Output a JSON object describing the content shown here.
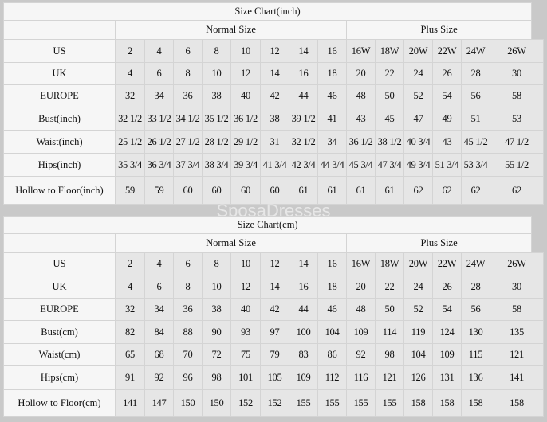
{
  "watermark": "SposaDresses",
  "tables": [
    {
      "title": "Size Chart(inch)",
      "normal_label": "Normal Size",
      "plus_label": "Plus Size",
      "rows": [
        {
          "label": "US",
          "values": [
            "2",
            "4",
            "6",
            "8",
            "10",
            "12",
            "14",
            "16",
            "16W",
            "18W",
            "20W",
            "22W",
            "24W",
            "26W"
          ]
        },
        {
          "label": "UK",
          "values": [
            "4",
            "6",
            "8",
            "10",
            "12",
            "14",
            "16",
            "18",
            "20",
            "22",
            "24",
            "26",
            "28",
            "30"
          ]
        },
        {
          "label": "EUROPE",
          "values": [
            "32",
            "34",
            "36",
            "38",
            "40",
            "42",
            "44",
            "46",
            "48",
            "50",
            "52",
            "54",
            "56",
            "58"
          ]
        },
        {
          "label": "Bust(inch)",
          "values": [
            "32 1/2",
            "33 1/2",
            "34 1/2",
            "35 1/2",
            "36 1/2",
            "38",
            "39 1/2",
            "41",
            "43",
            "45",
            "47",
            "49",
            "51",
            "53"
          ]
        },
        {
          "label": "Waist(inch)",
          "values": [
            "25 1/2",
            "26 1/2",
            "27 1/2",
            "28 1/2",
            "29 1/2",
            "31",
            "32 1/2",
            "34",
            "36 1/2",
            "38 1/2",
            "40 3/4",
            "43",
            "45 1/2",
            "47 1/2"
          ]
        },
        {
          "label": "Hips(inch)",
          "values": [
            "35 3/4",
            "36 3/4",
            "37 3/4",
            "38 3/4",
            "39 3/4",
            "41 3/4",
            "42 3/4",
            "44 3/4",
            "45 3/4",
            "47 3/4",
            "49 3/4",
            "51 3/4",
            "53 3/4",
            "55 1/2"
          ]
        },
        {
          "label": "Hollow to Floor(inch)",
          "values": [
            "59",
            "59",
            "60",
            "60",
            "60",
            "60",
            "61",
            "61",
            "61",
            "61",
            "62",
            "62",
            "62",
            "62"
          ]
        }
      ]
    },
    {
      "title": "Size Chart(cm)",
      "normal_label": "Normal Size",
      "plus_label": "Plus Size",
      "rows": [
        {
          "label": "US",
          "values": [
            "2",
            "4",
            "6",
            "8",
            "10",
            "12",
            "14",
            "16",
            "16W",
            "18W",
            "20W",
            "22W",
            "24W",
            "26W"
          ]
        },
        {
          "label": "UK",
          "values": [
            "4",
            "6",
            "8",
            "10",
            "12",
            "14",
            "16",
            "18",
            "20",
            "22",
            "24",
            "26",
            "28",
            "30"
          ]
        },
        {
          "label": "EUROPE",
          "values": [
            "32",
            "34",
            "36",
            "38",
            "40",
            "42",
            "44",
            "46",
            "48",
            "50",
            "52",
            "54",
            "56",
            "58"
          ]
        },
        {
          "label": "Bust(cm)",
          "values": [
            "82",
            "84",
            "88",
            "90",
            "93",
            "97",
            "100",
            "104",
            "109",
            "114",
            "119",
            "124",
            "130",
            "135"
          ]
        },
        {
          "label": "Waist(cm)",
          "values": [
            "65",
            "68",
            "70",
            "72",
            "75",
            "79",
            "83",
            "86",
            "92",
            "98",
            "104",
            "109",
            "115",
            "121"
          ]
        },
        {
          "label": "Hips(cm)",
          "values": [
            "91",
            "92",
            "96",
            "98",
            "101",
            "105",
            "109",
            "112",
            "116",
            "121",
            "126",
            "131",
            "136",
            "141"
          ]
        },
        {
          "label": "Hollow to Floor(cm)",
          "values": [
            "141",
            "147",
            "150",
            "150",
            "152",
            "152",
            "155",
            "155",
            "155",
            "155",
            "158",
            "158",
            "158",
            "158"
          ]
        }
      ]
    }
  ]
}
